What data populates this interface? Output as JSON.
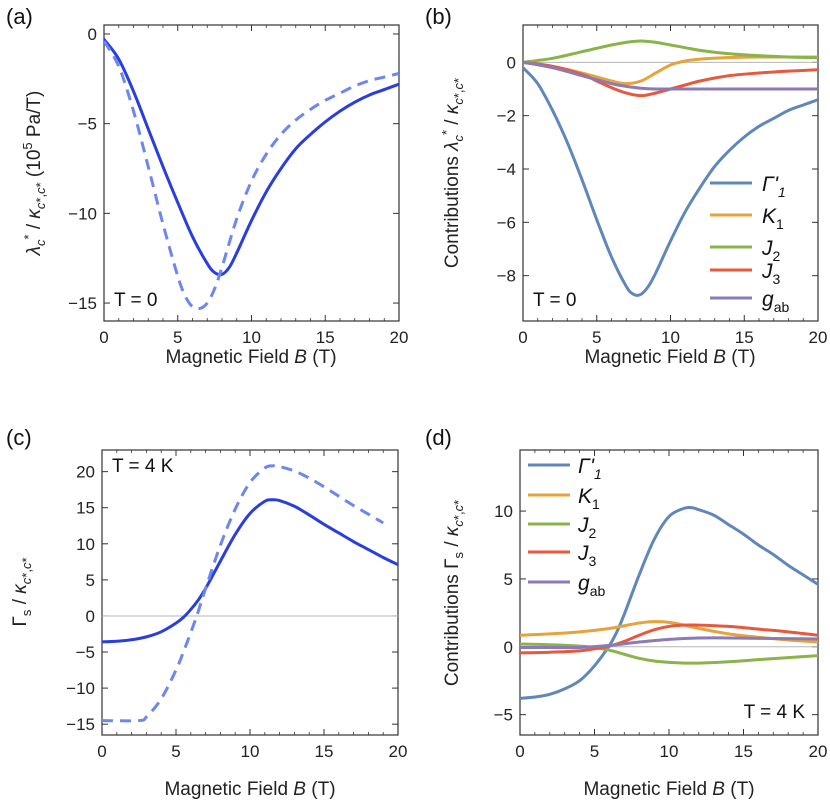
{
  "colors": {
    "blue": "#2a3ee0",
    "light_blue": "#6e86f0",
    "gamma": "#5f87ba",
    "k1": "#e5a33a",
    "j2": "#8ab348",
    "j3": "#e8593c",
    "gab": "#8c79b8",
    "zero_line": "#b5b5b5"
  },
  "chart_data": [
    {
      "panel": "(a)",
      "type": "line",
      "xlabel": "Magnetic Field B (T)",
      "ylabel": "λ_c* / κ_c*,c* (10^5 Pa/T)",
      "annotation": "T = 0",
      "xlim": [
        0,
        20
      ],
      "ylim": [
        -16,
        0.5
      ],
      "xticks": [
        "0",
        "5",
        "10",
        "15",
        "20"
      ],
      "yticks": [
        {
          "v": 0,
          "label": "0"
        },
        {
          "v": -5,
          "label": "-5"
        },
        {
          "v": -10,
          "label": "-10"
        },
        {
          "v": -15,
          "label": "-15"
        }
      ],
      "zero_line": false,
      "series": [
        {
          "name": "solid",
          "color": "#2a3ee0",
          "dash": false,
          "x": [
            0,
            1,
            2,
            3,
            4,
            5,
            6,
            7,
            7.5,
            8,
            8.5,
            9,
            10,
            11,
            12,
            13,
            14,
            15,
            16,
            17,
            18,
            19,
            20
          ],
          "y": [
            -0.3,
            -1.4,
            -3.2,
            -5.3,
            -7.4,
            -9.4,
            -11.3,
            -12.8,
            -13.3,
            -13.4,
            -13.0,
            -12.2,
            -10.4,
            -8.8,
            -7.5,
            -6.4,
            -5.6,
            -4.9,
            -4.3,
            -3.8,
            -3.4,
            -3.1,
            -2.8
          ]
        },
        {
          "name": "dashed",
          "color": "#6e86f0",
          "dash": true,
          "x": [
            0,
            1,
            2,
            3,
            4,
            5,
            5.5,
            6,
            6.5,
            7,
            7.5,
            8,
            9,
            10,
            11,
            12,
            13,
            14,
            15,
            16,
            17,
            18,
            19,
            20
          ],
          "y": [
            -0.4,
            -1.8,
            -4.3,
            -7.4,
            -10.6,
            -13.5,
            -14.6,
            -15.2,
            -15.3,
            -15.0,
            -14.2,
            -13.0,
            -10.3,
            -8.2,
            -6.7,
            -5.6,
            -4.8,
            -4.2,
            -3.7,
            -3.3,
            -2.9,
            -2.6,
            -2.4,
            -2.2
          ]
        }
      ]
    },
    {
      "panel": "(b)",
      "type": "line",
      "xlabel": "Magnetic Field B (T)",
      "ylabel": "Contributions λ_c* / κ_c*,c*",
      "annotation": "T = 0",
      "xlim": [
        0,
        20
      ],
      "ylim": [
        -9.7,
        1.4
      ],
      "xticks": [
        "0",
        "5",
        "10",
        "15",
        "20"
      ],
      "yticks": [
        {
          "v": 0,
          "label": "0"
        },
        {
          "v": -2,
          "label": "-2"
        },
        {
          "v": -4,
          "label": "-4"
        },
        {
          "v": -6,
          "label": "-6"
        },
        {
          "v": -8,
          "label": "-8"
        }
      ],
      "zero_line": true,
      "legend": [
        "Γ'1",
        "K1",
        "J2",
        "J3",
        "gab"
      ],
      "series": [
        {
          "name": "Γ'1",
          "color": "#5f87ba",
          "x": [
            0,
            1,
            2,
            3,
            4,
            5,
            6,
            7,
            7.5,
            8,
            8.5,
            9,
            10,
            11,
            12,
            13,
            14,
            15,
            16,
            17,
            18,
            19,
            20
          ],
          "y": [
            -0.2,
            -0.8,
            -1.8,
            -3.0,
            -4.4,
            -5.9,
            -7.3,
            -8.4,
            -8.7,
            -8.7,
            -8.4,
            -7.9,
            -6.7,
            -5.6,
            -4.7,
            -3.9,
            -3.3,
            -2.8,
            -2.4,
            -2.1,
            -1.8,
            -1.6,
            -1.4
          ]
        },
        {
          "name": "K1",
          "color": "#e5a33a",
          "x": [
            0,
            2,
            4,
            6,
            7,
            8,
            9,
            10,
            11,
            12,
            14,
            16,
            18,
            20
          ],
          "y": [
            0,
            -0.15,
            -0.4,
            -0.7,
            -0.8,
            -0.7,
            -0.4,
            -0.1,
            0.05,
            0.12,
            0.18,
            0.2,
            0.2,
            0.2
          ]
        },
        {
          "name": "J2",
          "color": "#8ab348",
          "x": [
            0,
            2,
            4,
            6,
            7,
            8,
            9,
            10,
            11,
            12,
            14,
            16,
            18,
            20
          ],
          "y": [
            0,
            0.15,
            0.4,
            0.65,
            0.75,
            0.8,
            0.75,
            0.65,
            0.55,
            0.45,
            0.32,
            0.25,
            0.2,
            0.17
          ]
        },
        {
          "name": "J3",
          "color": "#e8593c",
          "x": [
            0,
            2,
            4,
            5,
            6,
            7,
            8,
            9,
            10,
            11,
            12,
            14,
            16,
            18,
            20
          ],
          "y": [
            0,
            -0.15,
            -0.45,
            -0.7,
            -0.95,
            -1.15,
            -1.25,
            -1.15,
            -1.0,
            -0.85,
            -0.7,
            -0.5,
            -0.4,
            -0.33,
            -0.28
          ]
        },
        {
          "name": "gab",
          "color": "#8c79b8",
          "x": [
            0,
            2,
            4,
            6,
            7,
            8,
            9,
            10,
            12,
            14,
            16,
            18,
            20
          ],
          "y": [
            0,
            -0.2,
            -0.5,
            -0.8,
            -0.9,
            -0.97,
            -1.0,
            -1.0,
            -1.0,
            -1.0,
            -1.0,
            -1.0,
            -1.0
          ]
        }
      ]
    },
    {
      "panel": "(c)",
      "type": "line",
      "xlabel": "Magnetic Field B (T)",
      "ylabel": "Γs / κ_c*,c*",
      "annotation": "T = 4 K",
      "xlim": [
        0,
        20
      ],
      "ylim": [
        -16.5,
        23
      ],
      "xticks": [
        "0",
        "5",
        "10",
        "15",
        "20"
      ],
      "yticks": [
        {
          "v": 20,
          "label": "20"
        },
        {
          "v": 15,
          "label": "15"
        },
        {
          "v": 10,
          "label": "10"
        },
        {
          "v": 5,
          "label": "5"
        },
        {
          "v": 0,
          "label": "0"
        },
        {
          "v": -5,
          "label": "-5"
        },
        {
          "v": -10,
          "label": "-10"
        },
        {
          "v": -15,
          "label": "-15"
        }
      ],
      "zero_line": true,
      "series": [
        {
          "name": "solid",
          "color": "#2a3ee0",
          "dash": false,
          "x": [
            0,
            1,
            2,
            3,
            4,
            5,
            5.5,
            6,
            6.5,
            7,
            8,
            9,
            10,
            11,
            11.5,
            12,
            13,
            14,
            15,
            16,
            17,
            18,
            19,
            20
          ],
          "y": [
            -3.6,
            -3.5,
            -3.3,
            -2.9,
            -2.2,
            -1.0,
            -0.2,
            0.9,
            2.2,
            3.8,
            7.6,
            11.3,
            14.2,
            15.9,
            16.1,
            16.0,
            15.2,
            14.0,
            12.7,
            11.5,
            10.3,
            9.2,
            8.1,
            7.1
          ]
        },
        {
          "name": "dashed",
          "color": "#6e86f0",
          "dash": true,
          "x": [
            0,
            2.5,
            3,
            4,
            5,
            5.5,
            6,
            6.5,
            7,
            8,
            9,
            10,
            11,
            11.5,
            12,
            13,
            14,
            15,
            16,
            17,
            18,
            19
          ],
          "y": [
            -14.5,
            -14.5,
            -14.0,
            -11.5,
            -7.5,
            -5.0,
            -2.3,
            0.6,
            3.8,
            9.8,
            14.8,
            18.5,
            20.5,
            20.8,
            20.7,
            20.1,
            19.1,
            17.9,
            16.6,
            15.3,
            14.1,
            12.9
          ]
        }
      ]
    },
    {
      "panel": "(d)",
      "type": "line",
      "xlabel": "Magnetic Field B (T)",
      "ylabel": "Contributions Γs / κ_c*,c*",
      "annotation": "T = 4 K",
      "xlim": [
        0,
        20
      ],
      "ylim": [
        -6.5,
        14.5
      ],
      "xticks": [
        "0",
        "5",
        "10",
        "15",
        "20"
      ],
      "yticks": [
        {
          "v": 10,
          "label": "10"
        },
        {
          "v": 5,
          "label": "5"
        },
        {
          "v": 0,
          "label": "0"
        },
        {
          "v": -5,
          "label": "-5"
        }
      ],
      "zero_line": true,
      "legend": [
        "Γ'1",
        "K1",
        "J2",
        "J3",
        "gab"
      ],
      "series": [
        {
          "name": "Γ'1",
          "color": "#5f87ba",
          "x": [
            0,
            1,
            2,
            3,
            4,
            5,
            6,
            6.5,
            7,
            8,
            9,
            10,
            11,
            11.5,
            12,
            13,
            14,
            15,
            16,
            17,
            18,
            19,
            20
          ],
          "y": [
            -3.8,
            -3.7,
            -3.5,
            -3.1,
            -2.5,
            -1.4,
            0.1,
            1.1,
            2.4,
            5.3,
            7.9,
            9.6,
            10.2,
            10.25,
            10.1,
            9.7,
            9.0,
            8.3,
            7.5,
            6.8,
            6.0,
            5.3,
            4.6
          ]
        },
        {
          "name": "K1",
          "color": "#e5a33a",
          "x": [
            0,
            2,
            4,
            6,
            7,
            8,
            9,
            10,
            11,
            12,
            14,
            16,
            18,
            20
          ],
          "y": [
            0.85,
            0.95,
            1.1,
            1.35,
            1.55,
            1.75,
            1.85,
            1.8,
            1.6,
            1.35,
            0.95,
            0.7,
            0.5,
            0.35
          ]
        },
        {
          "name": "J2",
          "color": "#8ab348",
          "x": [
            0,
            2,
            4,
            5,
            6,
            7,
            8,
            9,
            10,
            11,
            12,
            14,
            16,
            18,
            20
          ],
          "y": [
            0.2,
            0.15,
            0.05,
            -0.05,
            -0.25,
            -0.55,
            -0.85,
            -1.05,
            -1.15,
            -1.2,
            -1.2,
            -1.1,
            -0.95,
            -0.8,
            -0.65
          ]
        },
        {
          "name": "J3",
          "color": "#e8593c",
          "x": [
            0,
            2,
            4,
            5,
            6,
            7,
            8,
            9,
            10,
            11,
            12,
            14,
            16,
            18,
            20
          ],
          "y": [
            -0.45,
            -0.4,
            -0.3,
            -0.15,
            0.05,
            0.4,
            0.85,
            1.25,
            1.5,
            1.6,
            1.6,
            1.5,
            1.3,
            1.1,
            0.85
          ]
        },
        {
          "name": "gab",
          "color": "#8c79b8",
          "x": [
            0,
            2,
            4,
            6,
            8,
            10,
            12,
            14,
            16,
            18,
            20
          ],
          "y": [
            -0.05,
            -0.05,
            -0.05,
            0.1,
            0.35,
            0.55,
            0.65,
            0.65,
            0.62,
            0.6,
            0.57
          ]
        }
      ]
    }
  ]
}
